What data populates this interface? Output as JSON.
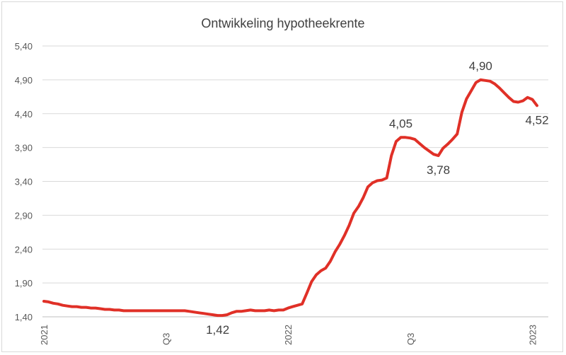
{
  "chart_data": {
    "type": "line",
    "title": "Ontwikkeling hypotheekrente",
    "xlabel": "",
    "ylabel": "",
    "ylim": [
      1.4,
      5.4
    ],
    "yticks": [
      "1,40",
      "1,90",
      "2,40",
      "2,90",
      "3,40",
      "3,90",
      "4,40",
      "4,90",
      "5,40"
    ],
    "ytick_values": [
      1.4,
      1.9,
      2.4,
      2.9,
      3.4,
      3.9,
      4.4,
      4.9,
      5.4
    ],
    "xticks": [
      {
        "label": "2021",
        "index": 0
      },
      {
        "label": "Q3",
        "index": 26
      },
      {
        "label": "2022",
        "index": 52
      },
      {
        "label": "Q3",
        "index": 78
      },
      {
        "label": "2023",
        "index": 104
      }
    ],
    "grid": true,
    "color": "#e03027",
    "series": [
      {
        "values": [
          1.63,
          1.62,
          1.6,
          1.59,
          1.57,
          1.56,
          1.55,
          1.55,
          1.54,
          1.54,
          1.53,
          1.53,
          1.52,
          1.51,
          1.51,
          1.5,
          1.5,
          1.49,
          1.49,
          1.49,
          1.49,
          1.49,
          1.49,
          1.49,
          1.49,
          1.49,
          1.49,
          1.49,
          1.49,
          1.49,
          1.49,
          1.48,
          1.47,
          1.46,
          1.45,
          1.44,
          1.43,
          1.42,
          1.42,
          1.43,
          1.46,
          1.48,
          1.48,
          1.49,
          1.5,
          1.49,
          1.49,
          1.49,
          1.5,
          1.49,
          1.5,
          1.5,
          1.53,
          1.55,
          1.57,
          1.59,
          1.75,
          1.92,
          2.02,
          2.08,
          2.12,
          2.22,
          2.36,
          2.47,
          2.6,
          2.75,
          2.93,
          3.03,
          3.16,
          3.32,
          3.38,
          3.41,
          3.42,
          3.45,
          3.78,
          3.99,
          4.05,
          4.05,
          4.04,
          4.02,
          3.96,
          3.9,
          3.85,
          3.8,
          3.78,
          3.89,
          3.95,
          4.02,
          4.1,
          4.42,
          4.62,
          4.74,
          4.86,
          4.9,
          4.89,
          4.88,
          4.84,
          4.78,
          4.71,
          4.64,
          4.58,
          4.57,
          4.59,
          4.64,
          4.61,
          4.52
        ]
      }
    ],
    "data_labels": [
      {
        "text": "1,42",
        "index": 37,
        "position": "below"
      },
      {
        "text": "4,05",
        "index": 76,
        "position": "above"
      },
      {
        "text": "3,78",
        "index": 84,
        "position": "below"
      },
      {
        "text": "4,90",
        "index": 93,
        "position": "above"
      },
      {
        "text": "4,52",
        "index": 105,
        "position": "below"
      }
    ]
  }
}
